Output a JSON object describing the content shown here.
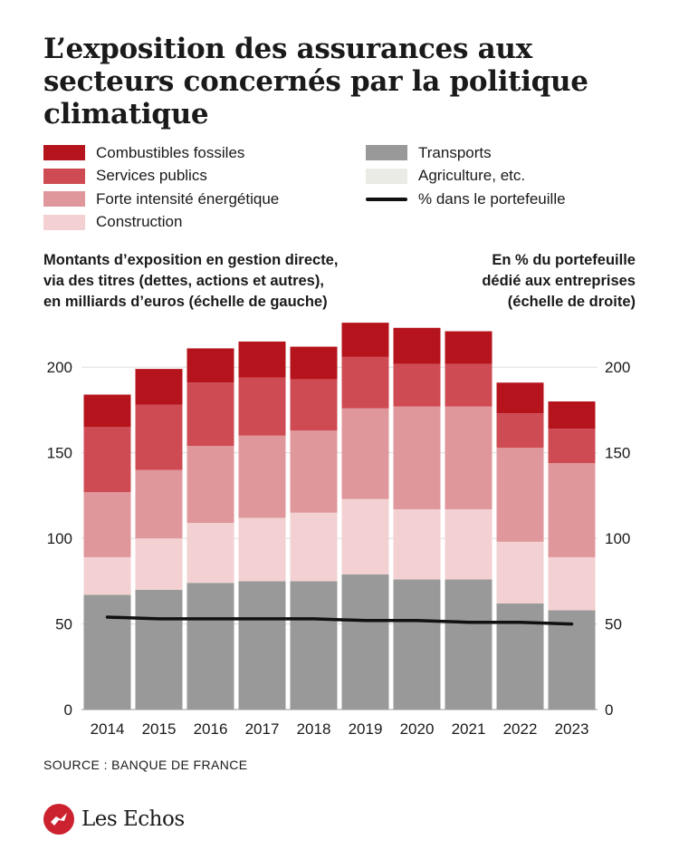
{
  "title": "L’exposition des assurances aux secteurs concernés par la politique climatique",
  "legend_left": [
    {
      "label": "Combustibles fossiles",
      "color": "#b5141c"
    },
    {
      "label": "Services publics",
      "color": "#cf4b53"
    },
    {
      "label": "Forte intensité énergétique",
      "color": "#e0979b"
    },
    {
      "label": "Construction",
      "color": "#f3d0d1"
    }
  ],
  "legend_right": [
    {
      "label": "Transports",
      "color": "#999999"
    },
    {
      "label": "Agriculture, etc.",
      "color": "#ebebe6"
    },
    {
      "label": "% dans le portefeuille",
      "color": "#111111"
    }
  ],
  "left_note": [
    "Montants d’exposition en gestion directe,",
    "via des titres (dettes, actions et autres),",
    "en milliards d’euros (échelle de gauche)"
  ],
  "right_note": [
    "En % du portefeuille",
    "dédié aux entreprises",
    "(échelle de droite)"
  ],
  "source": "SOURCE : BANQUE DE FRANCE",
  "brand": "Les Echos",
  "chart_data": {
    "type": "bar",
    "stacked": true,
    "categories": [
      "2014",
      "2015",
      "2016",
      "2017",
      "2018",
      "2019",
      "2020",
      "2021",
      "2022",
      "2023"
    ],
    "series": [
      {
        "name": "Transports",
        "color": "#999999",
        "values": [
          67,
          70,
          74,
          75,
          75,
          79,
          76,
          76,
          62,
          58
        ]
      },
      {
        "name": "Agriculture, etc.",
        "color": "#ebebe6",
        "values": [
          0,
          0,
          0,
          0,
          0,
          0,
          0,
          0,
          0,
          0
        ]
      },
      {
        "name": "Construction",
        "color": "#f3d0d1",
        "values": [
          22,
          30,
          35,
          37,
          40,
          44,
          41,
          41,
          36,
          31
        ]
      },
      {
        "name": "Forte intensité énergétique",
        "color": "#e0979b",
        "values": [
          38,
          40,
          45,
          48,
          48,
          53,
          60,
          60,
          55,
          55
        ]
      },
      {
        "name": "Services publics",
        "color": "#cf4b53",
        "values": [
          38,
          38,
          37,
          34,
          30,
          30,
          25,
          25,
          20,
          20
        ]
      },
      {
        "name": "Combustibles fossiles",
        "color": "#b5141c",
        "values": [
          19,
          21,
          20,
          21,
          19,
          20,
          21,
          19,
          18,
          16
        ]
      }
    ],
    "line": {
      "name": "% dans le portefeuille",
      "color": "#111111",
      "values": [
        54,
        53,
        53,
        53,
        53,
        52,
        52,
        51,
        51,
        50
      ]
    },
    "ylim": [
      0,
      225
    ],
    "yticks": [
      0,
      50,
      100,
      150,
      200
    ],
    "ytick_labels": [
      "0",
      "50",
      "100",
      "150",
      "200"
    ],
    "grid": true
  }
}
